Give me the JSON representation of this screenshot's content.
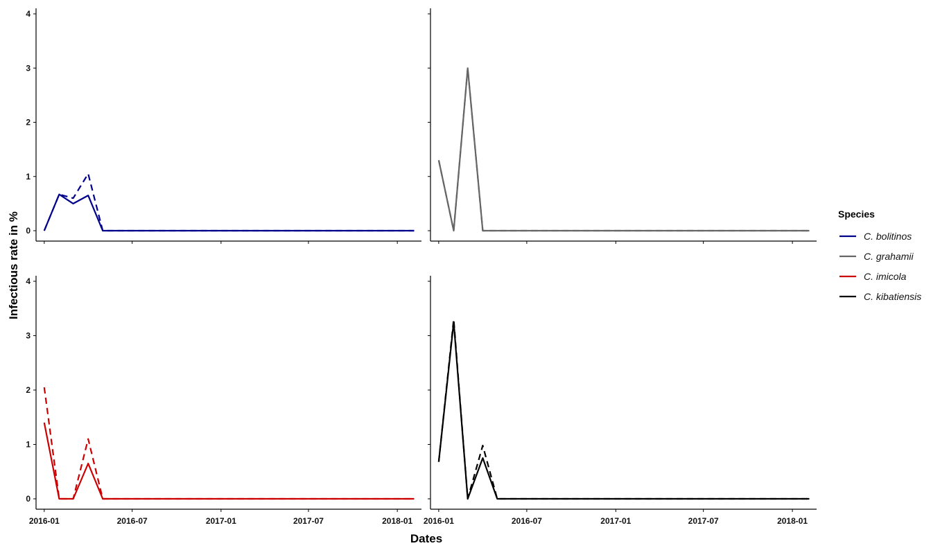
{
  "chart_data": {
    "type": "line",
    "xlabel": "Dates",
    "ylabel": "Infectious rate in %",
    "ylim": [
      0,
      4
    ],
    "yticks": [
      "0",
      "1",
      "2",
      "3",
      "4"
    ],
    "xlim": [
      "2015-12-15",
      "2018-02-20"
    ],
    "xticks": [
      {
        "date": "2016-01-01",
        "label": "2016-01"
      },
      {
        "date": "2016-07-01",
        "label": "2016-07"
      },
      {
        "date": "2017-01-01",
        "label": "2017-01"
      },
      {
        "date": "2017-07-01",
        "label": "2017-07"
      },
      {
        "date": "2018-01-01",
        "label": "2018-01"
      }
    ],
    "grid": false,
    "legend": {
      "title": "Species",
      "position": "right",
      "entries": [
        {
          "label": "C. bolitinos",
          "color": "#00008B"
        },
        {
          "label": "C. grahamii",
          "color": "#666666"
        },
        {
          "label": "C. imicola",
          "color": "#CC0000"
        },
        {
          "label": "C. kibatiensis",
          "color": "#000000"
        }
      ]
    },
    "panels": [
      {
        "species": "C. bolitinos",
        "color": "#00008B",
        "series": [
          {
            "style": "solid",
            "points": [
              [
                "2016-01-01",
                0
              ],
              [
                "2016-02-01",
                0.67
              ],
              [
                "2016-03-01",
                0.5
              ],
              [
                "2016-04-01",
                0.65
              ],
              [
                "2016-05-01",
                0
              ],
              [
                "2018-02-05",
                0
              ]
            ]
          },
          {
            "style": "dashed",
            "points": [
              [
                "2016-01-01",
                0
              ],
              [
                "2016-02-01",
                0.67
              ],
              [
                "2016-03-01",
                0.6
              ],
              [
                "2016-04-01",
                1.05
              ],
              [
                "2016-05-01",
                0
              ],
              [
                "2018-02-05",
                0
              ]
            ]
          }
        ]
      },
      {
        "species": "C. grahamii",
        "color": "#666666",
        "series": [
          {
            "style": "solid",
            "points": [
              [
                "2016-01-01",
                1.3
              ],
              [
                "2016-02-01",
                0
              ],
              [
                "2016-03-01",
                3.0
              ],
              [
                "2016-04-01",
                0
              ],
              [
                "2018-02-05",
                0
              ]
            ]
          },
          {
            "style": "dashed",
            "points": [
              [
                "2016-01-01",
                1.3
              ],
              [
                "2016-02-01",
                0
              ],
              [
                "2016-03-01",
                3.0
              ],
              [
                "2016-04-01",
                0
              ],
              [
                "2018-02-05",
                0
              ]
            ]
          }
        ]
      },
      {
        "species": "C. imicola",
        "color": "#CC0000",
        "series": [
          {
            "style": "solid",
            "points": [
              [
                "2016-01-01",
                1.4
              ],
              [
                "2016-02-01",
                0
              ],
              [
                "2016-03-01",
                0
              ],
              [
                "2016-04-01",
                0.65
              ],
              [
                "2016-05-01",
                0
              ],
              [
                "2018-02-05",
                0
              ]
            ]
          },
          {
            "style": "dashed",
            "points": [
              [
                "2016-01-01",
                2.05
              ],
              [
                "2016-02-01",
                0
              ],
              [
                "2016-03-01",
                0
              ],
              [
                "2016-04-01",
                1.1
              ],
              [
                "2016-05-01",
                0
              ],
              [
                "2018-02-05",
                0
              ]
            ]
          }
        ]
      },
      {
        "species": "C. kibatiensis",
        "color": "#000000",
        "series": [
          {
            "style": "solid",
            "points": [
              [
                "2016-01-01",
                0.68
              ],
              [
                "2016-02-01",
                3.25
              ],
              [
                "2016-03-01",
                0
              ],
              [
                "2016-04-01",
                0.75
              ],
              [
                "2016-05-01",
                0
              ],
              [
                "2018-02-05",
                0
              ]
            ]
          },
          {
            "style": "dashed",
            "points": [
              [
                "2016-01-01",
                0.68
              ],
              [
                "2016-02-01",
                3.3
              ],
              [
                "2016-03-01",
                0
              ],
              [
                "2016-04-01",
                0.98
              ],
              [
                "2016-05-01",
                0
              ],
              [
                "2018-02-05",
                0
              ]
            ]
          }
        ]
      }
    ]
  }
}
